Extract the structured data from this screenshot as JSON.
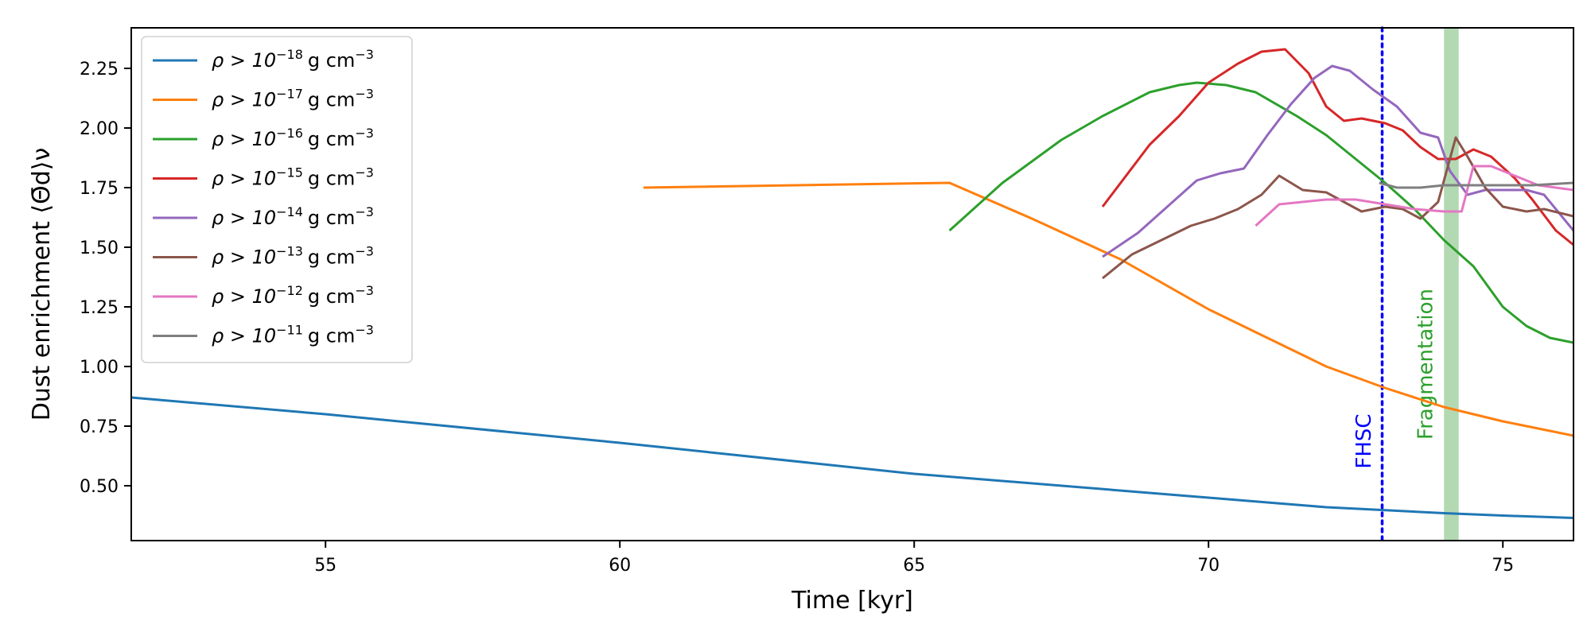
{
  "chart_data": {
    "type": "line",
    "title": "",
    "xlabel": "Time [kyr]",
    "ylabel": "Dust enrichment ⟨Θ̄d⟩ν",
    "xlim": [
      51.7,
      76.2
    ],
    "ylim": [
      0.27,
      2.42
    ],
    "xticks": [
      55,
      60,
      65,
      70,
      75
    ],
    "yticks": [
      0.5,
      0.75,
      1.0,
      1.25,
      1.5,
      1.75,
      2.0,
      2.25
    ],
    "xtick_labels": [
      "55",
      "60",
      "65",
      "70",
      "75"
    ],
    "ytick_labels": [
      "0.50",
      "0.75",
      "1.00",
      "1.25",
      "1.50",
      "1.75",
      "2.00",
      "2.25"
    ],
    "grid": false,
    "legend_position": "upper-left",
    "series": [
      {
        "name": "ρ > 10−18 g cm−3",
        "base": "ρ > 10",
        "exp": "−18",
        "unit": "g cm",
        "unit_exp": "−3",
        "color": "#1f77b4",
        "x": [
          51.7,
          55,
          60,
          65,
          70,
          72,
          74,
          75,
          76.2
        ],
        "y": [
          0.87,
          0.8,
          0.68,
          0.55,
          0.45,
          0.41,
          0.385,
          0.375,
          0.365
        ]
      },
      {
        "name": "ρ > 10−17 g cm−3",
        "base": "ρ > 10",
        "exp": "−17",
        "unit": "g cm",
        "unit_exp": "−3",
        "color": "#ff7f0e",
        "x": [
          60.4,
          65.6,
          67,
          68.5,
          70,
          71,
          72,
          73,
          74,
          75,
          76.2
        ],
        "y": [
          1.75,
          1.77,
          1.62,
          1.45,
          1.24,
          1.12,
          1.0,
          0.91,
          0.83,
          0.77,
          0.71
        ]
      },
      {
        "name": "ρ > 10−16 g cm−3",
        "base": "ρ > 10",
        "exp": "−16",
        "unit": "g cm",
        "unit_exp": "−3",
        "color": "#2ca02c",
        "x": [
          65.6,
          66.5,
          67.5,
          68.2,
          69,
          69.5,
          69.8,
          70.3,
          70.8,
          71.5,
          72,
          72.5,
          73,
          73.5,
          74,
          74.5,
          75,
          75.4,
          75.8,
          76.2
        ],
        "y": [
          1.57,
          1.77,
          1.95,
          2.05,
          2.15,
          2.18,
          2.19,
          2.18,
          2.15,
          2.05,
          1.97,
          1.87,
          1.77,
          1.66,
          1.53,
          1.42,
          1.25,
          1.17,
          1.12,
          1.1
        ]
      },
      {
        "name": "ρ > 10−15 g cm−3",
        "base": "ρ > 10",
        "exp": "−15",
        "unit": "g cm",
        "unit_exp": "−3",
        "color": "#d62728",
        "x": [
          68.2,
          69,
          69.5,
          70,
          70.5,
          70.9,
          71.3,
          71.7,
          72,
          72.3,
          72.6,
          73,
          73.3,
          73.6,
          73.9,
          74.2,
          74.5,
          74.8,
          75.2,
          75.5,
          75.9,
          76.2
        ],
        "y": [
          1.67,
          1.93,
          2.05,
          2.19,
          2.27,
          2.32,
          2.33,
          2.23,
          2.09,
          2.03,
          2.04,
          2.02,
          1.99,
          1.92,
          1.87,
          1.87,
          1.91,
          1.88,
          1.79,
          1.7,
          1.57,
          1.51
        ]
      },
      {
        "name": "ρ > 10−14 g cm−3",
        "base": "ρ > 10",
        "exp": "−14",
        "unit": "g cm",
        "unit_exp": "−3",
        "color": "#9467bd",
        "x": [
          68.2,
          68.8,
          69.3,
          69.8,
          70.2,
          70.6,
          71,
          71.4,
          71.8,
          72.1,
          72.4,
          72.8,
          73.2,
          73.6,
          73.9,
          74.1,
          74.4,
          74.7,
          75,
          75.4,
          75.7,
          76.2
        ],
        "y": [
          1.46,
          1.56,
          1.67,
          1.78,
          1.81,
          1.83,
          1.97,
          2.1,
          2.21,
          2.26,
          2.24,
          2.16,
          2.09,
          1.98,
          1.96,
          1.82,
          1.72,
          1.74,
          1.74,
          1.74,
          1.72,
          1.57
        ]
      },
      {
        "name": "ρ > 10−13 g cm−3",
        "base": "ρ > 10",
        "exp": "−13",
        "unit": "g cm",
        "unit_exp": "−3",
        "color": "#8c564b",
        "x": [
          68.2,
          68.7,
          69.2,
          69.7,
          70.1,
          70.5,
          70.9,
          71.2,
          71.6,
          72,
          72.3,
          72.6,
          73,
          73.3,
          73.6,
          73.9,
          74.2,
          74.4,
          74.7,
          75,
          75.4,
          75.7,
          76.2
        ],
        "y": [
          1.37,
          1.47,
          1.53,
          1.59,
          1.62,
          1.66,
          1.72,
          1.8,
          1.74,
          1.73,
          1.69,
          1.65,
          1.67,
          1.66,
          1.62,
          1.69,
          1.96,
          1.88,
          1.75,
          1.67,
          1.65,
          1.66,
          1.63
        ]
      },
      {
        "name": "ρ > 10−12 g cm−3",
        "base": "ρ > 10",
        "exp": "−12",
        "unit": "g cm",
        "unit_exp": "−3",
        "color": "#e377c2",
        "x": [
          70.8,
          71.2,
          71.6,
          72,
          72.5,
          73,
          73.5,
          74,
          74.3,
          74.5,
          74.8,
          75.2,
          75.6,
          76.2
        ],
        "y": [
          1.59,
          1.68,
          1.69,
          1.7,
          1.7,
          1.68,
          1.66,
          1.65,
          1.65,
          1.84,
          1.84,
          1.8,
          1.76,
          1.74
        ]
      },
      {
        "name": "ρ > 10−11 g cm−3",
        "base": "ρ > 10",
        "exp": "−11",
        "unit": "g cm",
        "unit_exp": "−3",
        "color": "#7f7f7f",
        "x": [
          72.9,
          73.2,
          73.6,
          74,
          74.5,
          75,
          75.5,
          76.2
        ],
        "y": [
          1.77,
          1.75,
          1.75,
          1.76,
          1.76,
          1.76,
          1.76,
          1.77
        ]
      }
    ],
    "annotations": [
      {
        "label": "FHSC",
        "kind": "vline",
        "x": 72.95,
        "color": "#0000ff"
      },
      {
        "label": "Fragmentation",
        "kind": "vspan",
        "x_start": 74.0,
        "x_end": 74.25,
        "color": "#2ca02c",
        "span_color": "#b3d9b3"
      }
    ]
  }
}
